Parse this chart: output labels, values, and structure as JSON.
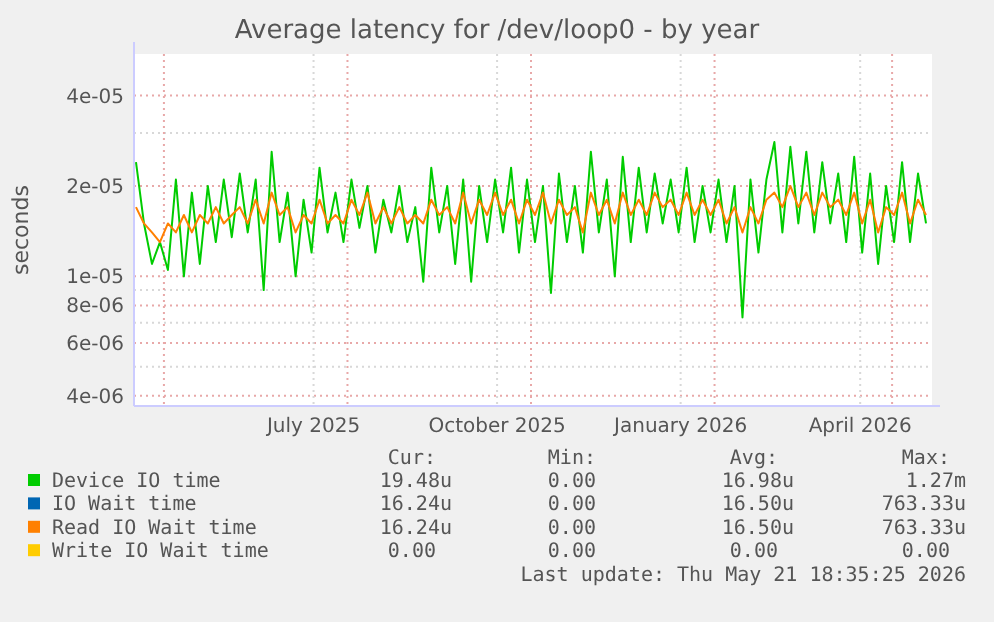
{
  "chart_data": {
    "type": "line",
    "title": "Average latency for /dev/loop0 - by year",
    "ylabel": "seconds",
    "log": true,
    "grid": true,
    "legend": "bottom",
    "marker": "none",
    "line_style": "solid",
    "xlim": [
      "2025-04-16",
      "2026-05-21"
    ],
    "xticks": [
      {
        "value": "2025-05-01",
        "label": null
      },
      {
        "value": "2025-07-15",
        "label": "July 2025"
      },
      {
        "value": "2025-08-01",
        "label": null
      },
      {
        "value": "2025-10-15",
        "label": "October 2025"
      },
      {
        "value": "2025-11-01",
        "label": null
      },
      {
        "value": "2026-01-15",
        "label": "January 2026"
      },
      {
        "value": "2026-02-01",
        "label": null
      },
      {
        "value": "2026-04-15",
        "label": "April 2026"
      },
      {
        "value": "2026-05-01",
        "label": null
      }
    ],
    "ylim": [
      3.7e-06,
      5.5e-05
    ],
    "yticks": [
      {
        "value": 4e-06,
        "label": "4e-06"
      },
      {
        "value": 5e-06,
        "label": null
      },
      {
        "value": 6e-06,
        "label": "6e-06"
      },
      {
        "value": 7e-06,
        "label": null
      },
      {
        "value": 8e-06,
        "label": "8e-06"
      },
      {
        "value": 9e-06,
        "label": null
      },
      {
        "value": 1e-05,
        "label": "1e-05"
      },
      {
        "value": 2e-05,
        "label": "2e-05"
      },
      {
        "value": 3e-05,
        "label": null
      },
      {
        "value": 4e-05,
        "label": "4e-05"
      }
    ],
    "x": [
      "2025-04-17",
      "2025-04-21",
      "2025-04-25",
      "2025-04-29",
      "2025-05-03",
      "2025-05-07",
      "2025-05-11",
      "2025-05-15",
      "2025-05-19",
      "2025-05-23",
      "2025-05-27",
      "2025-05-31",
      "2025-06-04",
      "2025-06-08",
      "2025-06-12",
      "2025-06-16",
      "2025-06-20",
      "2025-06-24",
      "2025-06-28",
      "2025-07-02",
      "2025-07-06",
      "2025-07-10",
      "2025-07-14",
      "2025-07-18",
      "2025-07-22",
      "2025-07-26",
      "2025-07-30",
      "2025-08-03",
      "2025-08-07",
      "2025-08-11",
      "2025-08-15",
      "2025-08-19",
      "2025-08-23",
      "2025-08-27",
      "2025-08-31",
      "2025-09-04",
      "2025-09-08",
      "2025-09-12",
      "2025-09-16",
      "2025-09-20",
      "2025-09-24",
      "2025-09-28",
      "2025-10-02",
      "2025-10-06",
      "2025-10-10",
      "2025-10-14",
      "2025-10-18",
      "2025-10-22",
      "2025-10-26",
      "2025-10-30",
      "2025-11-03",
      "2025-11-07",
      "2025-11-11",
      "2025-11-15",
      "2025-11-19",
      "2025-11-23",
      "2025-11-27",
      "2025-12-01",
      "2025-12-05",
      "2025-12-09",
      "2025-12-13",
      "2025-12-17",
      "2025-12-21",
      "2025-12-25",
      "2025-12-29",
      "2026-01-02",
      "2026-01-06",
      "2026-01-10",
      "2026-01-14",
      "2026-01-18",
      "2026-01-22",
      "2026-01-26",
      "2026-01-30",
      "2026-02-03",
      "2026-02-07",
      "2026-02-11",
      "2026-02-15",
      "2026-02-19",
      "2026-02-23",
      "2026-02-27",
      "2026-03-03",
      "2026-03-07",
      "2026-03-11",
      "2026-03-15",
      "2026-03-19",
      "2026-03-23",
      "2026-03-27",
      "2026-03-31",
      "2026-04-04",
      "2026-04-08",
      "2026-04-12",
      "2026-04-16",
      "2026-04-20",
      "2026-04-24",
      "2026-04-28",
      "2026-05-02",
      "2026-05-06",
      "2026-05-10",
      "2026-05-14",
      "2026-05-18"
    ],
    "series": [
      {
        "name": "Device IO time",
        "color": "#00cc00",
        "values": [
          2.4e-05,
          1.5e-05,
          1.1e-05,
          1.3e-05,
          1.05e-05,
          2.1e-05,
          1e-05,
          1.9e-05,
          1.1e-05,
          2e-05,
          1.3e-05,
          2.1e-05,
          1.35e-05,
          2.2e-05,
          1.4e-05,
          2.1e-05,
          9e-06,
          2.6e-05,
          1.3e-05,
          1.9e-05,
          1e-05,
          1.8e-05,
          1.2e-05,
          2.3e-05,
          1.4e-05,
          1.9e-05,
          1.3e-05,
          2.1e-05,
          1.45e-05,
          2e-05,
          1.2e-05,
          1.8e-05,
          1.4e-05,
          2e-05,
          1.3e-05,
          1.7e-05,
          9.6e-06,
          2.3e-05,
          1.4e-05,
          2e-05,
          1.1e-05,
          2.1e-05,
          9.6e-06,
          2e-05,
          1.3e-05,
          2.1e-05,
          1.4e-05,
          2.3e-05,
          1.2e-05,
          2.1e-05,
          1.3e-05,
          2e-05,
          8.8e-06,
          2.2e-05,
          1.3e-05,
          2e-05,
          1.2e-05,
          2.6e-05,
          1.4e-05,
          2.1e-05,
          1e-05,
          2.5e-05,
          1.3e-05,
          2.3e-05,
          1.4e-05,
          2.2e-05,
          1.5e-05,
          2.1e-05,
          1.4e-05,
          2.3e-05,
          1.3e-05,
          2e-05,
          1.4e-05,
          2.1e-05,
          1.3e-05,
          2e-05,
          7.3e-06,
          2.1e-05,
          1.2e-05,
          2.1e-05,
          2.8e-05,
          1.4e-05,
          2.7e-05,
          1.5e-05,
          2.6e-05,
          1.4e-05,
          2.4e-05,
          1.5e-05,
          2.2e-05,
          1.3e-05,
          2.5e-05,
          1.2e-05,
          2.2e-05,
          1.1e-05,
          2e-05,
          1.3e-05,
          2.4e-05,
          1.3e-05,
          2.2e-05,
          1.5e-05
        ]
      },
      {
        "name": "IO Wait time",
        "color": "#0066b3",
        "values": [
          null,
          null,
          null,
          null,
          null,
          null,
          null,
          null,
          null,
          null,
          null,
          null,
          null,
          null,
          null,
          null,
          null,
          null,
          null,
          null,
          null,
          null,
          null,
          null,
          null,
          null,
          null,
          null,
          null,
          null,
          null,
          null,
          null,
          null,
          null,
          null,
          null,
          null,
          null,
          null,
          null,
          null,
          null,
          null,
          null,
          null,
          null,
          null,
          null,
          null,
          null,
          null,
          null,
          null,
          null,
          null,
          null,
          null,
          null,
          null,
          null,
          null,
          null,
          null,
          null,
          null,
          null,
          null,
          null,
          null,
          null,
          null,
          null,
          null,
          null,
          null,
          null,
          null,
          null,
          null,
          null,
          null,
          null,
          null,
          null,
          null,
          null,
          null,
          null,
          null,
          null,
          null,
          null,
          null,
          null,
          null,
          null,
          null,
          null,
          null
        ]
      },
      {
        "name": "Read IO Wait time",
        "color": "#ff8000",
        "values": [
          1.7e-05,
          1.5e-05,
          1.4e-05,
          1.3e-05,
          1.5e-05,
          1.4e-05,
          1.6e-05,
          1.4e-05,
          1.6e-05,
          1.5e-05,
          1.7e-05,
          1.5e-05,
          1.6e-05,
          1.7e-05,
          1.5e-05,
          1.8e-05,
          1.5e-05,
          1.9e-05,
          1.6e-05,
          1.7e-05,
          1.4e-05,
          1.6e-05,
          1.5e-05,
          1.8e-05,
          1.5e-05,
          1.6e-05,
          1.5e-05,
          1.8e-05,
          1.6e-05,
          1.9e-05,
          1.5e-05,
          1.7e-05,
          1.5e-05,
          1.7e-05,
          1.5e-05,
          1.6e-05,
          1.5e-05,
          1.8e-05,
          1.6e-05,
          1.7e-05,
          1.5e-05,
          1.9e-05,
          1.5e-05,
          1.8e-05,
          1.6e-05,
          1.9e-05,
          1.6e-05,
          1.8e-05,
          1.5e-05,
          1.8e-05,
          1.6e-05,
          1.9e-05,
          1.5e-05,
          1.8e-05,
          1.6e-05,
          1.7e-05,
          1.4e-05,
          1.9e-05,
          1.6e-05,
          1.8e-05,
          1.5e-05,
          1.9e-05,
          1.6e-05,
          1.8e-05,
          1.6e-05,
          1.9e-05,
          1.7e-05,
          1.8e-05,
          1.6e-05,
          1.9e-05,
          1.6e-05,
          1.8e-05,
          1.6e-05,
          1.8e-05,
          1.5e-05,
          1.7e-05,
          1.4e-05,
          1.7e-05,
          1.5e-05,
          1.8e-05,
          1.9e-05,
          1.7e-05,
          2e-05,
          1.7e-05,
          1.9e-05,
          1.6e-05,
          1.9e-05,
          1.7e-05,
          1.8e-05,
          1.6e-05,
          1.9e-05,
          1.5e-05,
          1.8e-05,
          1.4e-05,
          1.7e-05,
          1.6e-05,
          1.9e-05,
          1.5e-05,
          1.8e-05,
          1.6e-05
        ]
      },
      {
        "name": "Write IO Wait time",
        "color": "#ffcc00",
        "values": [
          null,
          null,
          null,
          null,
          null,
          null,
          null,
          null,
          null,
          null,
          null,
          null,
          null,
          null,
          null,
          null,
          null,
          null,
          null,
          null,
          null,
          null,
          null,
          null,
          null,
          null,
          null,
          null,
          null,
          null,
          null,
          null,
          null,
          null,
          null,
          null,
          null,
          null,
          null,
          null,
          null,
          null,
          null,
          null,
          null,
          null,
          null,
          null,
          null,
          null,
          null,
          null,
          null,
          null,
          null,
          null,
          null,
          null,
          null,
          null,
          null,
          null,
          null,
          null,
          null,
          null,
          null,
          null,
          null,
          null,
          null,
          null,
          null,
          null,
          null,
          null,
          null,
          null,
          null,
          null,
          null,
          null,
          null,
          null,
          null,
          null,
          null,
          null,
          null,
          null,
          null,
          null,
          null,
          null,
          null,
          null,
          null,
          null,
          null,
          null
        ]
      }
    ],
    "annotations": [
      "Cur:",
      "Min:",
      "Avg:",
      "Max:",
      "19.48u",
      "0.00",
      "16.98u",
      "1.27m",
      "16.24u",
      "0.00",
      "16.50u",
      "763.33u",
      "16.24u",
      "0.00",
      "16.50u",
      "763.33u",
      "0.00",
      "0.00",
      "0.00",
      "0.00",
      "Last update: Thu May 21 18:35:25 2026"
    ]
  }
}
